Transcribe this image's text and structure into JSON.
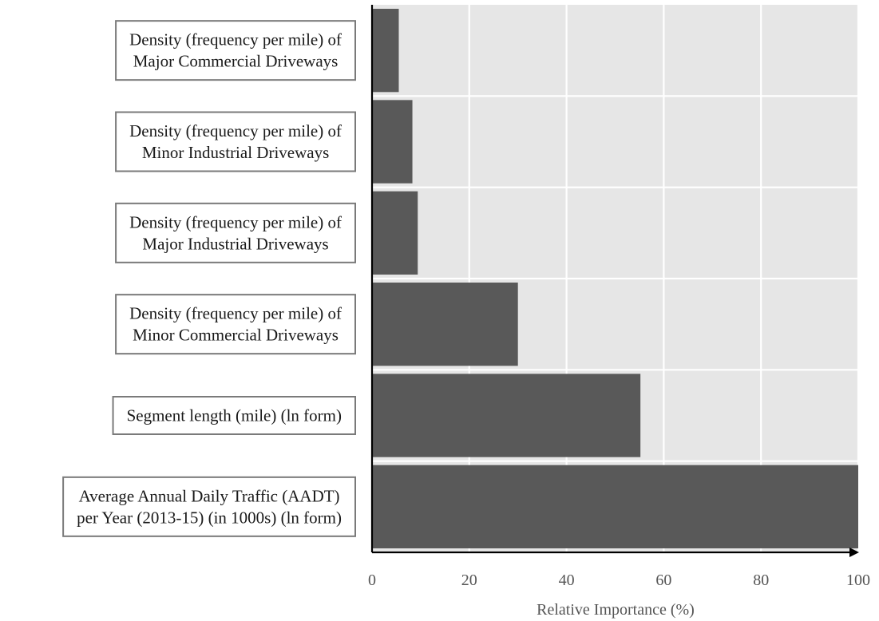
{
  "chart_data": {
    "type": "bar",
    "orientation": "horizontal",
    "categories": [
      [
        "Density (frequency per mile) of",
        "Major Commercial Driveways"
      ],
      [
        "Density (frequency per mile) of",
        "Minor Industrial Driveways"
      ],
      [
        "Density (frequency per mile) of",
        "Major Industrial Driveways"
      ],
      [
        "Density (frequency per mile) of",
        "Minor Commercial Driveways"
      ],
      [
        "Segment length (mile) (ln form)"
      ],
      [
        "Average Annual Daily Traffic (AADT)",
        "per Year (2013-15) (in 1000s) (ln form)"
      ]
    ],
    "values": [
      5.5,
      8.3,
      9.4,
      30,
      55.2,
      100
    ],
    "xlabel": "Relative Importance (%)",
    "xlim": [
      0,
      100
    ],
    "xticks": [
      "0",
      "20",
      "40",
      "60",
      "80",
      "100"
    ],
    "grid": true,
    "colors": {
      "bar": "#595959",
      "panel": "#e6e6e6",
      "grid": "#ffffff"
    }
  }
}
